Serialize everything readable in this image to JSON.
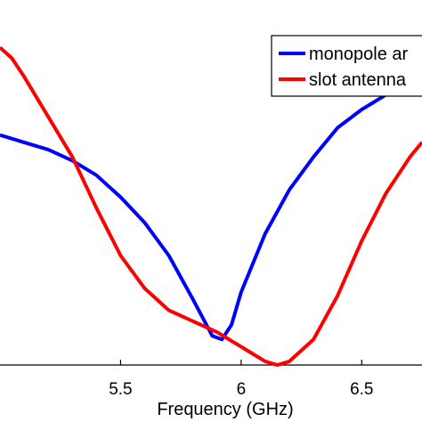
{
  "chart_data": {
    "type": "line",
    "xlabel": "Frequency (GHz)",
    "xlim": [
      5.0,
      6.75
    ],
    "ylim": [
      0,
      1
    ],
    "x_ticks": [
      {
        "value": 5.5,
        "label": "5.5"
      },
      {
        "value": 6.0,
        "label": "6"
      },
      {
        "value": 6.5,
        "label": "6.5"
      }
    ],
    "legend_position": "top-right",
    "series": [
      {
        "name": "monopole ar",
        "color": "#0000ff",
        "points": [
          [
            5.0,
            0.63
          ],
          [
            5.1,
            0.61
          ],
          [
            5.2,
            0.59
          ],
          [
            5.3,
            0.56
          ],
          [
            5.4,
            0.52
          ],
          [
            5.5,
            0.46
          ],
          [
            5.6,
            0.39
          ],
          [
            5.7,
            0.3
          ],
          [
            5.8,
            0.18
          ],
          [
            5.88,
            0.08
          ],
          [
            5.92,
            0.07
          ],
          [
            5.96,
            0.11
          ],
          [
            6.0,
            0.2
          ],
          [
            6.1,
            0.36
          ],
          [
            6.2,
            0.48
          ],
          [
            6.3,
            0.57
          ],
          [
            6.4,
            0.65
          ],
          [
            6.5,
            0.7
          ],
          [
            6.6,
            0.74
          ],
          [
            6.7,
            0.77
          ],
          [
            6.75,
            0.78
          ]
        ]
      },
      {
        "name": "slot antenna",
        "color": "#ff0000",
        "points": [
          [
            5.0,
            0.87
          ],
          [
            5.05,
            0.84
          ],
          [
            5.1,
            0.79
          ],
          [
            5.2,
            0.68
          ],
          [
            5.3,
            0.57
          ],
          [
            5.4,
            0.43
          ],
          [
            5.5,
            0.3
          ],
          [
            5.6,
            0.21
          ],
          [
            5.7,
            0.15
          ],
          [
            5.8,
            0.12
          ],
          [
            5.9,
            0.09
          ],
          [
            6.0,
            0.05
          ],
          [
            6.1,
            0.01
          ],
          [
            6.15,
            0.0
          ],
          [
            6.2,
            0.01
          ],
          [
            6.3,
            0.07
          ],
          [
            6.4,
            0.19
          ],
          [
            6.5,
            0.34
          ],
          [
            6.6,
            0.47
          ],
          [
            6.7,
            0.57
          ],
          [
            6.75,
            0.61
          ]
        ]
      }
    ]
  }
}
